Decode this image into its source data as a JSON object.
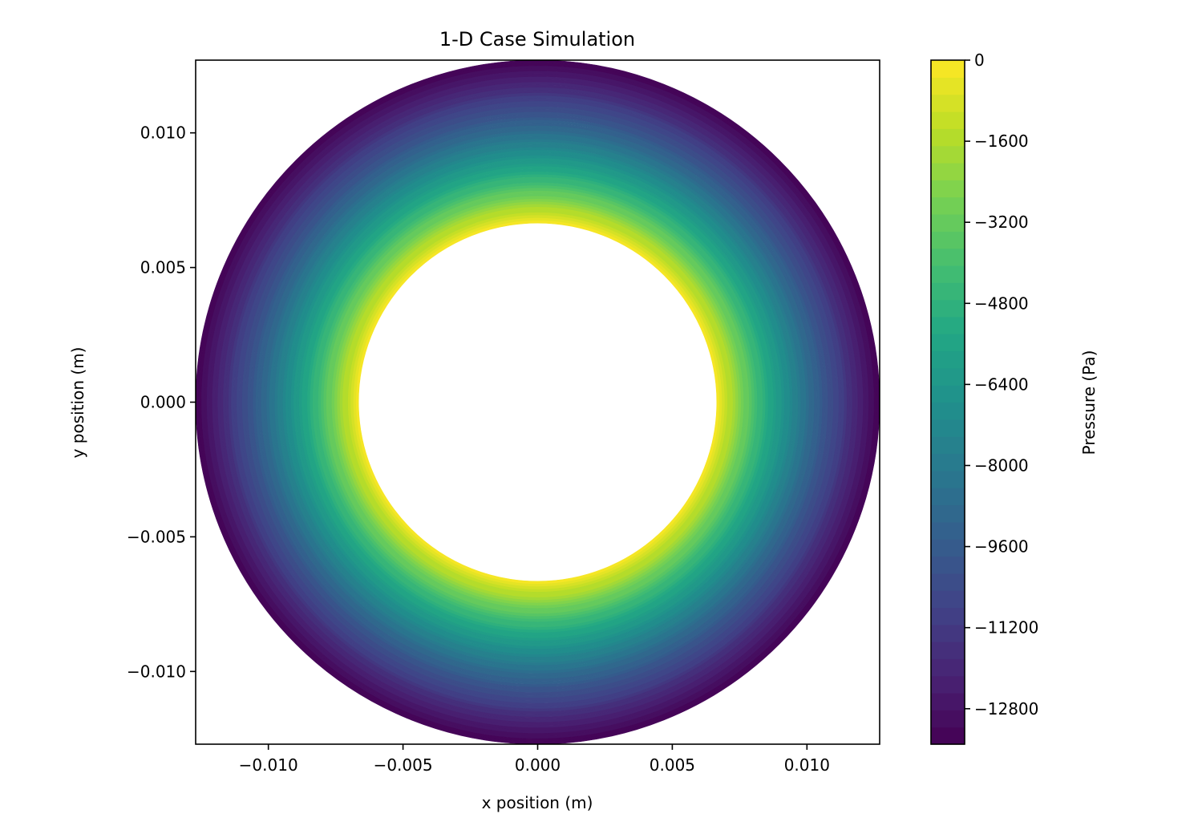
{
  "chart_data": {
    "type": "heatmap",
    "subtype": "filled-contour-annulus",
    "title": "1-D Case Simulation",
    "xlabel": "x position (m)",
    "ylabel": "y position (m)",
    "xlim": [
      -0.0127,
      0.0127
    ],
    "ylim": [
      -0.0127,
      0.0127
    ],
    "xticks": [
      -0.01,
      -0.005,
      0.0,
      0.005,
      0.01
    ],
    "xtick_labels": [
      "−0.010",
      "−0.005",
      "0.000",
      "0.005",
      "0.010"
    ],
    "yticks": [
      0.01,
      0.005,
      0.0,
      -0.005,
      -0.01
    ],
    "ytick_labels": [
      "0.010",
      "0.005",
      "0.000",
      "−0.005",
      "−0.010"
    ],
    "grid": false,
    "inner_radius": 0.00665,
    "outer_radius": 0.0127,
    "pressure_at_inner_radius": 0,
    "pressure_at_outer_radius": -13500,
    "colormap": "viridis",
    "colorbar": {
      "label": "Pressure (Pa)",
      "vmin": -13500,
      "vmax": 0,
      "ticks": [
        0,
        -1600,
        -3200,
        -4800,
        -6400,
        -8000,
        -9600,
        -11200,
        -12800
      ],
      "tick_labels": [
        "0",
        "−1600",
        "−3200",
        "−4800",
        "−6400",
        "−8000",
        "−9600",
        "−11200",
        "−12800"
      ]
    }
  }
}
